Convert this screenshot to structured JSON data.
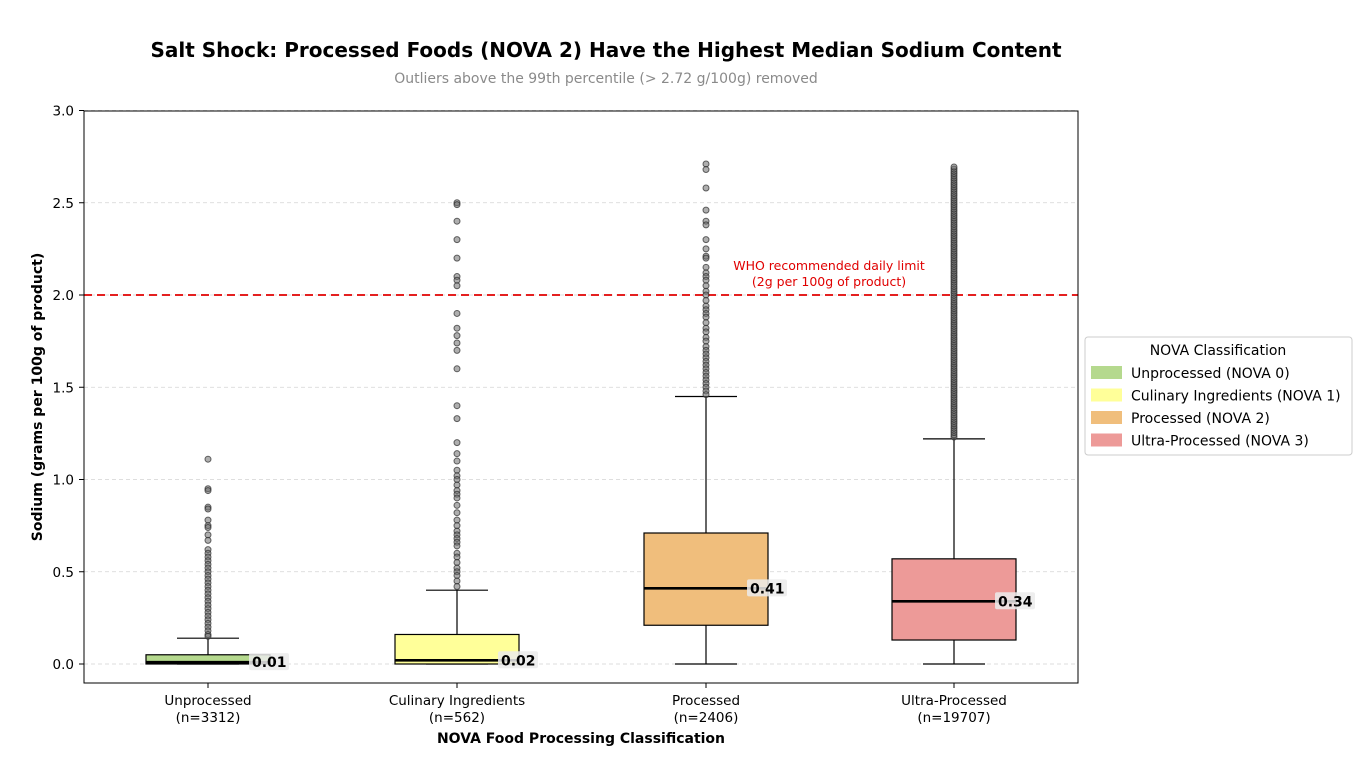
{
  "chart_data": {
    "type": "box",
    "title": "Salt Shock: Processed Foods (NOVA 2) Have the Highest Median Sodium Content",
    "subtitle": "Outliers above the 99th percentile (> 2.72 g/100g) removed",
    "xlabel": "NOVA Food Processing Classification",
    "ylabel": "Sodium (grams per 100g of product)",
    "ylim": [
      -0.1,
      3.0
    ],
    "yticks": [
      "0.0",
      "0.5",
      "1.0",
      "1.5",
      "2.0",
      "2.5",
      "3.0"
    ],
    "grid": "horizontal dashed",
    "legend_position": "right",
    "legend_title": "NOVA Classification",
    "reference_line": {
      "y": 2.0,
      "label_line1": "WHO recommended daily limit",
      "label_line2": "(2g per 100g of product)",
      "color": "#e00000"
    },
    "groups": [
      {
        "category": "Unprocessed",
        "n_label": "(n=3312)",
        "legend": "Unprocessed (NOVA 0)",
        "color": "#b5d98e",
        "whisker_low": 0.0,
        "q1": 0.0,
        "median": 0.01,
        "q3": 0.05,
        "whisker_high": 0.14,
        "median_label": "0.01",
        "outliers": [
          1.11,
          0.95,
          0.94,
          0.85,
          0.84,
          0.78,
          0.75,
          0.74,
          0.7,
          0.67,
          0.62,
          0.6,
          0.58,
          0.56,
          0.54,
          0.52,
          0.5,
          0.48,
          0.46,
          0.44,
          0.42,
          0.4,
          0.38,
          0.36,
          0.34,
          0.32,
          0.3,
          0.28,
          0.26,
          0.24,
          0.22,
          0.2,
          0.18,
          0.16,
          0.15
        ]
      },
      {
        "category": "Culinary Ingredients",
        "n_label": "(n=562)",
        "legend": "Culinary Ingredients (NOVA 1)",
        "color": "#ffff99",
        "whisker_low": 0.0,
        "q1": 0.0,
        "median": 0.02,
        "q3": 0.16,
        "whisker_high": 0.4,
        "median_label": "0.02",
        "outliers": [
          2.5,
          2.49,
          2.4,
          2.3,
          2.2,
          2.1,
          2.08,
          2.05,
          1.9,
          1.82,
          1.78,
          1.74,
          1.7,
          1.6,
          1.4,
          1.33,
          1.2,
          1.14,
          1.1,
          1.05,
          1.02,
          1.0,
          0.97,
          0.94,
          0.92,
          0.9,
          0.86,
          0.82,
          0.78,
          0.75,
          0.72,
          0.7,
          0.68,
          0.66,
          0.64,
          0.6,
          0.58,
          0.55,
          0.52,
          0.5,
          0.48,
          0.45,
          0.42
        ]
      },
      {
        "category": "Processed",
        "n_label": "(n=2406)",
        "legend": "Processed (NOVA 2)",
        "color": "#f0be7c",
        "whisker_low": 0.0,
        "q1": 0.21,
        "median": 0.41,
        "q3": 0.71,
        "whisker_high": 1.45,
        "median_label": "0.41",
        "outliers": [
          2.71,
          2.68,
          2.58,
          2.46,
          2.4,
          2.38,
          2.3,
          2.25,
          2.21,
          2.2,
          2.15,
          2.12,
          2.1,
          2.08,
          2.05,
          2.02,
          2.0,
          1.97,
          1.94,
          1.92,
          1.9,
          1.88,
          1.85,
          1.82,
          1.8,
          1.77,
          1.75,
          1.72,
          1.7,
          1.68,
          1.66,
          1.64,
          1.62,
          1.6,
          1.58,
          1.56,
          1.54,
          1.52,
          1.5,
          1.48,
          1.46
        ]
      },
      {
        "category": "Ultra-Processed",
        "n_label": "(n=19707)",
        "legend": "Ultra-Processed (NOVA 3)",
        "color": "#ed9a98",
        "whisker_low": 0.0,
        "q1": 0.13,
        "median": 0.34,
        "q3": 0.57,
        "whisker_high": 1.22,
        "median_label": "0.34",
        "outlier_min": 1.23,
        "outlier_max": 2.7,
        "outlier_step": 0.012
      }
    ]
  }
}
